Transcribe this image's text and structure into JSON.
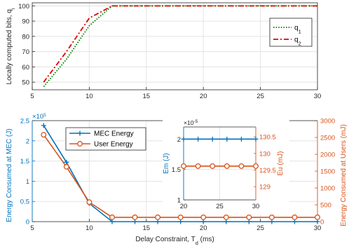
{
  "chart_data": [
    {
      "type": "line",
      "ylabel": "Locally computed bits, q",
      "ylabel_sub": "i",
      "xlim": [
        5,
        30
      ],
      "ylim": [
        45,
        102
      ],
      "xticks": [
        5,
        10,
        15,
        20,
        25,
        30
      ],
      "yticks": [
        50,
        60,
        70,
        80,
        90,
        100
      ],
      "grid": true,
      "legend_position": "middle-right",
      "series": [
        {
          "name": "q",
          "name_sub": "1",
          "color": "#008000",
          "dash": "dotted",
          "x": [
            6,
            8,
            10,
            12,
            30
          ],
          "y": [
            47,
            65,
            87,
            100,
            100
          ]
        },
        {
          "name": "q",
          "name_sub": "2",
          "color": "#e00000",
          "dash": "dashdot",
          "x": [
            6,
            8,
            10,
            12,
            30
          ],
          "y": [
            50,
            70,
            92,
            100,
            100
          ]
        }
      ]
    },
    {
      "type": "line",
      "xlabel": "Delay Constraint, T",
      "xlabel_sub": "d",
      "xlabel_suffix": " (ms)",
      "ylabel_left": "Energy Consumed at MEC (J)",
      "ylabel_right": "Energy Consumed at Users (mJ)",
      "left_color": "#0072bd",
      "right_color": "#d95319",
      "left_multiplier": "×10",
      "left_multiplier_exp": "5",
      "xlim": [
        5,
        30
      ],
      "ylim_left": [
        0,
        2.5
      ],
      "ylim_right": [
        0,
        3000
      ],
      "xticks": [
        5,
        10,
        15,
        20,
        25,
        30
      ],
      "yticks_left": [
        0,
        0.5,
        1,
        1.5,
        2,
        2.5
      ],
      "yticks_right": [
        0,
        500,
        1000,
        1500,
        2000,
        2500,
        3000
      ],
      "grid": true,
      "legend_position": "top-left",
      "series": [
        {
          "name": "MEC Energy",
          "axis": "left",
          "color": "#0072bd",
          "marker": "plus",
          "x": [
            6,
            8,
            10,
            12,
            14,
            16,
            18,
            20,
            22,
            24,
            26,
            28,
            30
          ],
          "y": [
            2.38,
            1.47,
            0.45,
            0,
            0,
            0,
            0,
            0,
            0,
            0,
            0,
            0,
            0
          ]
        },
        {
          "name": "User Energy",
          "axis": "right",
          "color": "#d95319",
          "marker": "circle",
          "x": [
            6,
            8,
            10,
            12,
            14,
            16,
            18,
            20,
            22,
            24,
            26,
            28,
            30
          ],
          "y": [
            2580,
            1630,
            580,
            130,
            130,
            130,
            130,
            130,
            130,
            130,
            130,
            130,
            130
          ]
        }
      ]
    },
    {
      "type": "line",
      "inset": true,
      "ylabel_left": "Em (J)",
      "ylabel_right": "Eu (mJ)",
      "left_multiplier": "×10",
      "left_multiplier_exp": "-5",
      "xlim": [
        20,
        30
      ],
      "ylim_left": [
        1,
        2.2
      ],
      "ylim_right": [
        128.6,
        130.8
      ],
      "xticks": [
        20,
        25,
        30
      ],
      "yticks_left": [
        1,
        1.5,
        2
      ],
      "yticks_right": [
        129,
        129.5,
        130,
        130.5
      ],
      "series": [
        {
          "name": "Em",
          "axis": "left",
          "color": "#0072bd",
          "marker": "plus",
          "x": [
            20,
            22,
            24,
            26,
            28,
            30
          ],
          "y": [
            2,
            2,
            2,
            2,
            2,
            2
          ]
        },
        {
          "name": "Eu",
          "axis": "right",
          "color": "#d95319",
          "marker": "circle",
          "x": [
            20,
            22,
            24,
            26,
            28,
            30
          ],
          "y": [
            129.62,
            129.62,
            129.62,
            129.62,
            129.62,
            129.62
          ]
        }
      ]
    }
  ]
}
